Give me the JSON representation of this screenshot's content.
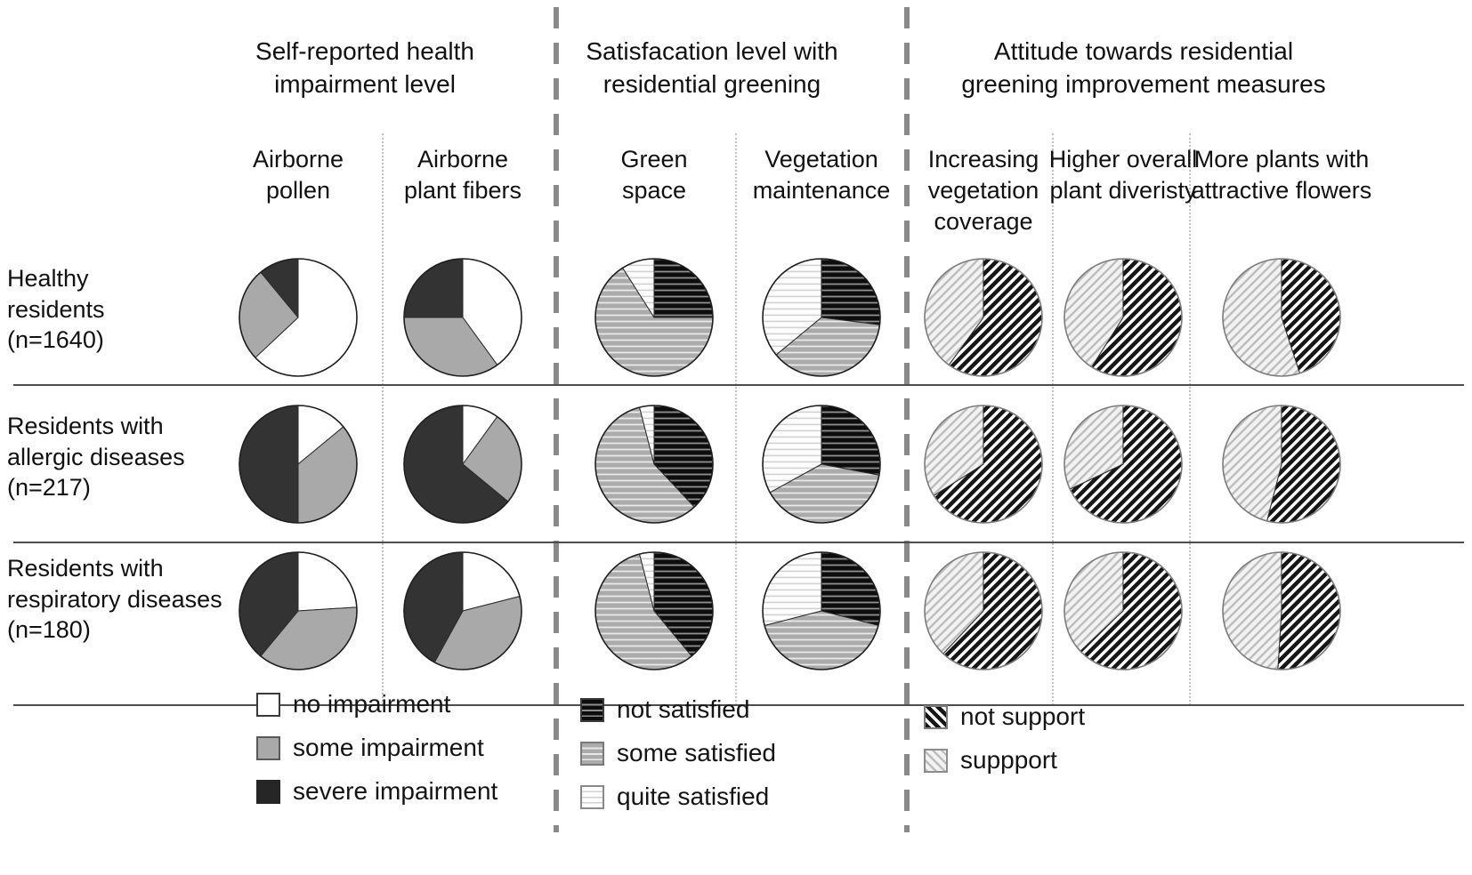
{
  "figure": {
    "rows": [
      {
        "label": "Healthy residents (n=1640)"
      },
      {
        "label": "Residents with allergic diseases (n=217)"
      },
      {
        "label": "Residents with respiratory diseases (n=180)"
      }
    ]
  },
  "chart_data": {
    "type": "pie",
    "description": "Matrix of pie charts: 3 resident groups (rows) x 7 survey questions (columns), values are percent of respondents",
    "rows": [
      "Healthy residents (n=1640)",
      "Residents with allergic diseases (n=217)",
      "Residents with respiratory diseases (n=180)"
    ],
    "groups": [
      {
        "title": "Self-reported health impairment level",
        "legend": [
          {
            "label": "no impairment",
            "swatch": "solid-white"
          },
          {
            "label": "some impairment",
            "swatch": "solid-gray"
          },
          {
            "label": "severe impairment",
            "swatch": "solid-dark"
          }
        ],
        "columns": [
          {
            "header": "Airborne pollen",
            "values_by_row": [
              [
                63,
                26,
                11
              ],
              [
                14,
                36,
                50
              ],
              [
                24,
                37,
                39
              ]
            ]
          },
          {
            "header": "Airborne plant fibers",
            "values_by_row": [
              [
                40,
                35,
                25
              ],
              [
                10,
                26,
                64
              ],
              [
                21,
                37,
                42
              ]
            ]
          }
        ]
      },
      {
        "title": "Satisfacation level with residential greening",
        "legend": [
          {
            "label": "not satisfied",
            "swatch": "hs-black"
          },
          {
            "label": "some satisfied",
            "swatch": "hs-gray"
          },
          {
            "label": "quite satisfied",
            "swatch": "hs-light"
          }
        ],
        "columns": [
          {
            "header": "Green space",
            "values_by_row": [
              [
                25,
                66,
                9
              ],
              [
                38,
                58,
                4
              ],
              [
                39,
                57,
                4
              ]
            ]
          },
          {
            "header": "Vegetation maintenance",
            "values_by_row": [
              [
                27,
                37,
                36
              ],
              [
                28,
                39,
                33
              ],
              [
                29,
                42,
                29
              ]
            ]
          }
        ]
      },
      {
        "title": "Attitude towards residential greening improvement measures",
        "legend": [
          {
            "label": "not support",
            "swatch": "di-dark"
          },
          {
            "label": "suppport",
            "swatch": "di-light"
          }
        ],
        "columns": [
          {
            "header": "Increasing vegetation coverage",
            "values_by_row": [
              [
                60,
                40
              ],
              [
                66,
                34
              ],
              [
                62,
                38
              ]
            ]
          },
          {
            "header": "Higher overall plant diveristy",
            "values_by_row": [
              [
                59,
                41
              ],
              [
                68,
                32
              ],
              [
                63,
                37
              ]
            ]
          },
          {
            "header": "More plants with attractive flowers",
            "values_by_row": [
              [
                45,
                55
              ],
              [
                54,
                46
              ],
              [
                51,
                49
              ]
            ]
          }
        ]
      }
    ]
  }
}
